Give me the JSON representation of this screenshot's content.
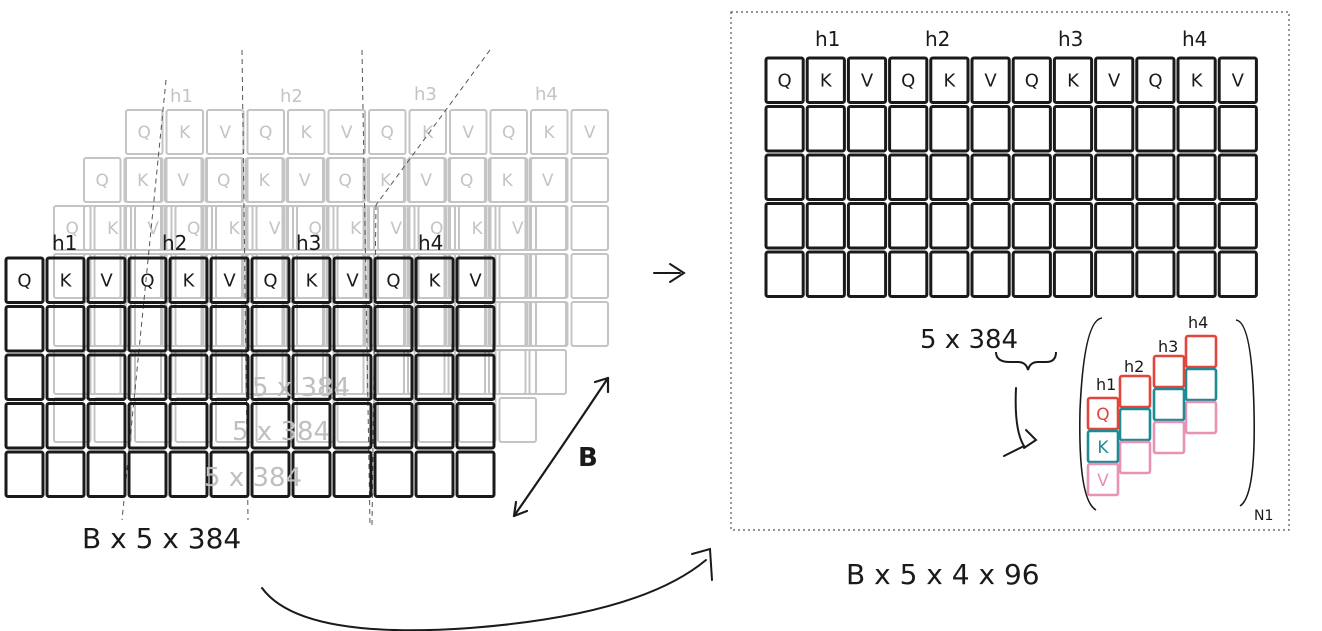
{
  "colors": {
    "ink": "#1a1a1a",
    "ghost": "#c4c4c4",
    "query_red": "#e0463a",
    "key_teal": "#1f8a93",
    "value_pink": "#e892b5"
  },
  "left_tensor": {
    "heads": [
      "h1",
      "h2",
      "h3",
      "h4"
    ],
    "cells": [
      "Q",
      "K",
      "V",
      "Q",
      "K",
      "V",
      "Q",
      "K",
      "V",
      "Q",
      "K",
      "V"
    ],
    "ghost_labels": [
      "5 x 384",
      "5 x 384",
      "5 x 384"
    ],
    "batch_label": "B",
    "shape_label": "B x 5 x 384"
  },
  "right_panel": {
    "heads": [
      "h1",
      "h2",
      "h3",
      "h4"
    ],
    "cells": [
      "Q",
      "K",
      "V",
      "Q",
      "K",
      "V",
      "Q",
      "K",
      "V",
      "Q",
      "K",
      "V"
    ],
    "shape_label": "5 x 384",
    "stack_heads": [
      "h1",
      "h2",
      "h3",
      "h4"
    ],
    "stack_cells": [
      "Q",
      "K",
      "V"
    ],
    "n_label": "N1",
    "result_label": "B x 5 x 4 x 96"
  }
}
